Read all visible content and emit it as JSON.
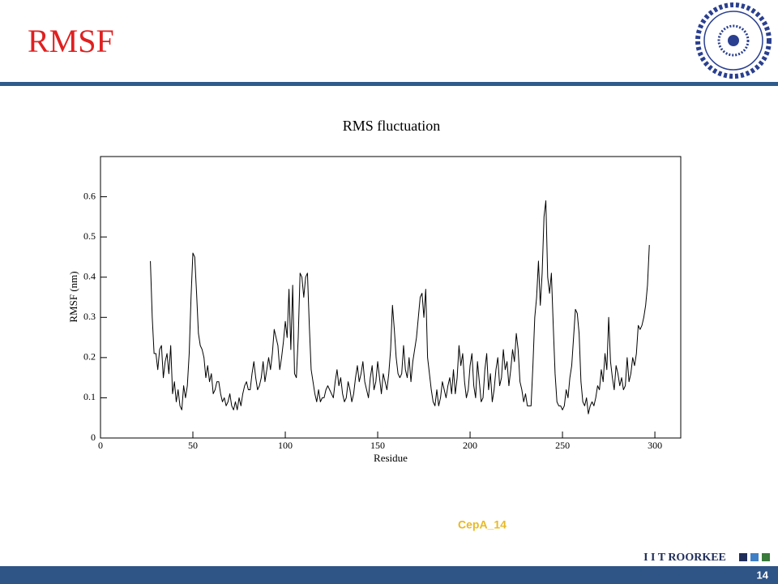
{
  "slide": {
    "title": "RMSF",
    "caption": "CepA_14",
    "brand": "I I T ROORKEE",
    "page": "14"
  },
  "chart_data": {
    "type": "line",
    "title": "RMS fluctuation",
    "x_label": "Residue",
    "y_label": "RMSF (nm)",
    "xlim": [
      0,
      314
    ],
    "xticks": [
      0,
      50,
      100,
      150,
      200,
      250,
      300
    ],
    "ylim": [
      0,
      0.7
    ],
    "yticks": [
      0,
      0.1,
      0.2,
      0.3,
      0.4,
      0.5,
      0.6
    ],
    "grid": false,
    "x": [
      27,
      28,
      29,
      30,
      31,
      32,
      33,
      34,
      35,
      36,
      37,
      38,
      39,
      40,
      41,
      42,
      43,
      44,
      45,
      46,
      47,
      48,
      49,
      50,
      51,
      52,
      53,
      54,
      55,
      56,
      57,
      58,
      59,
      60,
      61,
      62,
      63,
      64,
      65,
      66,
      67,
      68,
      69,
      70,
      71,
      72,
      73,
      74,
      75,
      76,
      77,
      78,
      79,
      80,
      81,
      82,
      83,
      84,
      85,
      86,
      87,
      88,
      89,
      90,
      91,
      92,
      93,
      94,
      95,
      96,
      97,
      98,
      99,
      100,
      101,
      102,
      103,
      104,
      105,
      106,
      107,
      108,
      109,
      110,
      111,
      112,
      113,
      114,
      115,
      116,
      117,
      118,
      119,
      120,
      121,
      122,
      123,
      124,
      125,
      126,
      127,
      128,
      129,
      130,
      131,
      132,
      133,
      134,
      135,
      136,
      137,
      138,
      139,
      140,
      141,
      142,
      143,
      144,
      145,
      146,
      147,
      148,
      149,
      150,
      151,
      152,
      153,
      154,
      155,
      156,
      157,
      158,
      159,
      160,
      161,
      162,
      163,
      164,
      165,
      166,
      167,
      168,
      169,
      170,
      171,
      172,
      173,
      174,
      175,
      176,
      177,
      178,
      179,
      180,
      181,
      182,
      183,
      184,
      185,
      186,
      187,
      188,
      189,
      190,
      191,
      192,
      193,
      194,
      195,
      196,
      197,
      198,
      199,
      200,
      201,
      202,
      203,
      204,
      205,
      206,
      207,
      208,
      209,
      210,
      211,
      212,
      213,
      214,
      215,
      216,
      217,
      218,
      219,
      220,
      221,
      222,
      223,
      224,
      225,
      226,
      227,
      228,
      229,
      230,
      231,
      232,
      233,
      234,
      235,
      236,
      237,
      238,
      239,
      240,
      241,
      242,
      243,
      244,
      245,
      246,
      247,
      248,
      249,
      250,
      251,
      252,
      253,
      254,
      255,
      256,
      257,
      258,
      259,
      260,
      261,
      262,
      263,
      264,
      265,
      266,
      267,
      268,
      269,
      270,
      271,
      272,
      273,
      274,
      275,
      276,
      277,
      278,
      279,
      280,
      281,
      282,
      283,
      284,
      285,
      286,
      287,
      288,
      289,
      290,
      291,
      292,
      293,
      294,
      295,
      296,
      297
    ],
    "series": [
      {
        "name": "RMSF",
        "color": "#000000",
        "values": [
          0.44,
          0.3,
          0.21,
          0.21,
          0.17,
          0.22,
          0.23,
          0.15,
          0.19,
          0.21,
          0.16,
          0.23,
          0.11,
          0.14,
          0.09,
          0.12,
          0.08,
          0.07,
          0.13,
          0.1,
          0.13,
          0.21,
          0.35,
          0.46,
          0.45,
          0.36,
          0.26,
          0.23,
          0.22,
          0.2,
          0.15,
          0.18,
          0.14,
          0.16,
          0.11,
          0.12,
          0.14,
          0.14,
          0.11,
          0.09,
          0.1,
          0.08,
          0.09,
          0.11,
          0.08,
          0.07,
          0.09,
          0.07,
          0.1,
          0.08,
          0.11,
          0.13,
          0.14,
          0.12,
          0.12,
          0.16,
          0.19,
          0.15,
          0.12,
          0.13,
          0.15,
          0.19,
          0.14,
          0.17,
          0.2,
          0.17,
          0.21,
          0.27,
          0.25,
          0.23,
          0.17,
          0.2,
          0.24,
          0.29,
          0.25,
          0.37,
          0.22,
          0.38,
          0.16,
          0.15,
          0.25,
          0.41,
          0.4,
          0.35,
          0.4,
          0.41,
          0.28,
          0.17,
          0.14,
          0.11,
          0.09,
          0.12,
          0.09,
          0.1,
          0.1,
          0.12,
          0.13,
          0.12,
          0.11,
          0.1,
          0.14,
          0.17,
          0.13,
          0.15,
          0.11,
          0.09,
          0.1,
          0.14,
          0.12,
          0.09,
          0.11,
          0.15,
          0.18,
          0.14,
          0.16,
          0.19,
          0.14,
          0.12,
          0.1,
          0.15,
          0.18,
          0.12,
          0.14,
          0.19,
          0.15,
          0.11,
          0.16,
          0.14,
          0.12,
          0.16,
          0.22,
          0.33,
          0.27,
          0.2,
          0.16,
          0.15,
          0.16,
          0.23,
          0.17,
          0.15,
          0.2,
          0.14,
          0.19,
          0.22,
          0.25,
          0.3,
          0.35,
          0.36,
          0.3,
          0.37,
          0.2,
          0.16,
          0.12,
          0.09,
          0.08,
          0.12,
          0.08,
          0.1,
          0.14,
          0.12,
          0.1,
          0.13,
          0.15,
          0.11,
          0.17,
          0.11,
          0.15,
          0.23,
          0.18,
          0.21,
          0.14,
          0.1,
          0.12,
          0.18,
          0.21,
          0.13,
          0.1,
          0.19,
          0.14,
          0.09,
          0.1,
          0.17,
          0.21,
          0.12,
          0.16,
          0.09,
          0.12,
          0.17,
          0.2,
          0.13,
          0.15,
          0.22,
          0.17,
          0.19,
          0.13,
          0.17,
          0.22,
          0.19,
          0.26,
          0.22,
          0.14,
          0.12,
          0.09,
          0.11,
          0.08,
          0.08,
          0.08,
          0.18,
          0.3,
          0.35,
          0.44,
          0.33,
          0.41,
          0.55,
          0.59,
          0.4,
          0.36,
          0.41,
          0.28,
          0.16,
          0.09,
          0.08,
          0.08,
          0.07,
          0.08,
          0.12,
          0.1,
          0.15,
          0.18,
          0.25,
          0.32,
          0.31,
          0.26,
          0.14,
          0.09,
          0.08,
          0.1,
          0.06,
          0.08,
          0.09,
          0.08,
          0.1,
          0.13,
          0.12,
          0.17,
          0.14,
          0.21,
          0.17,
          0.3,
          0.19,
          0.15,
          0.12,
          0.18,
          0.16,
          0.13,
          0.15,
          0.12,
          0.13,
          0.2,
          0.14,
          0.16,
          0.2,
          0.18,
          0.21,
          0.28,
          0.27,
          0.28,
          0.3,
          0.33,
          0.38,
          0.48
        ]
      }
    ]
  }
}
